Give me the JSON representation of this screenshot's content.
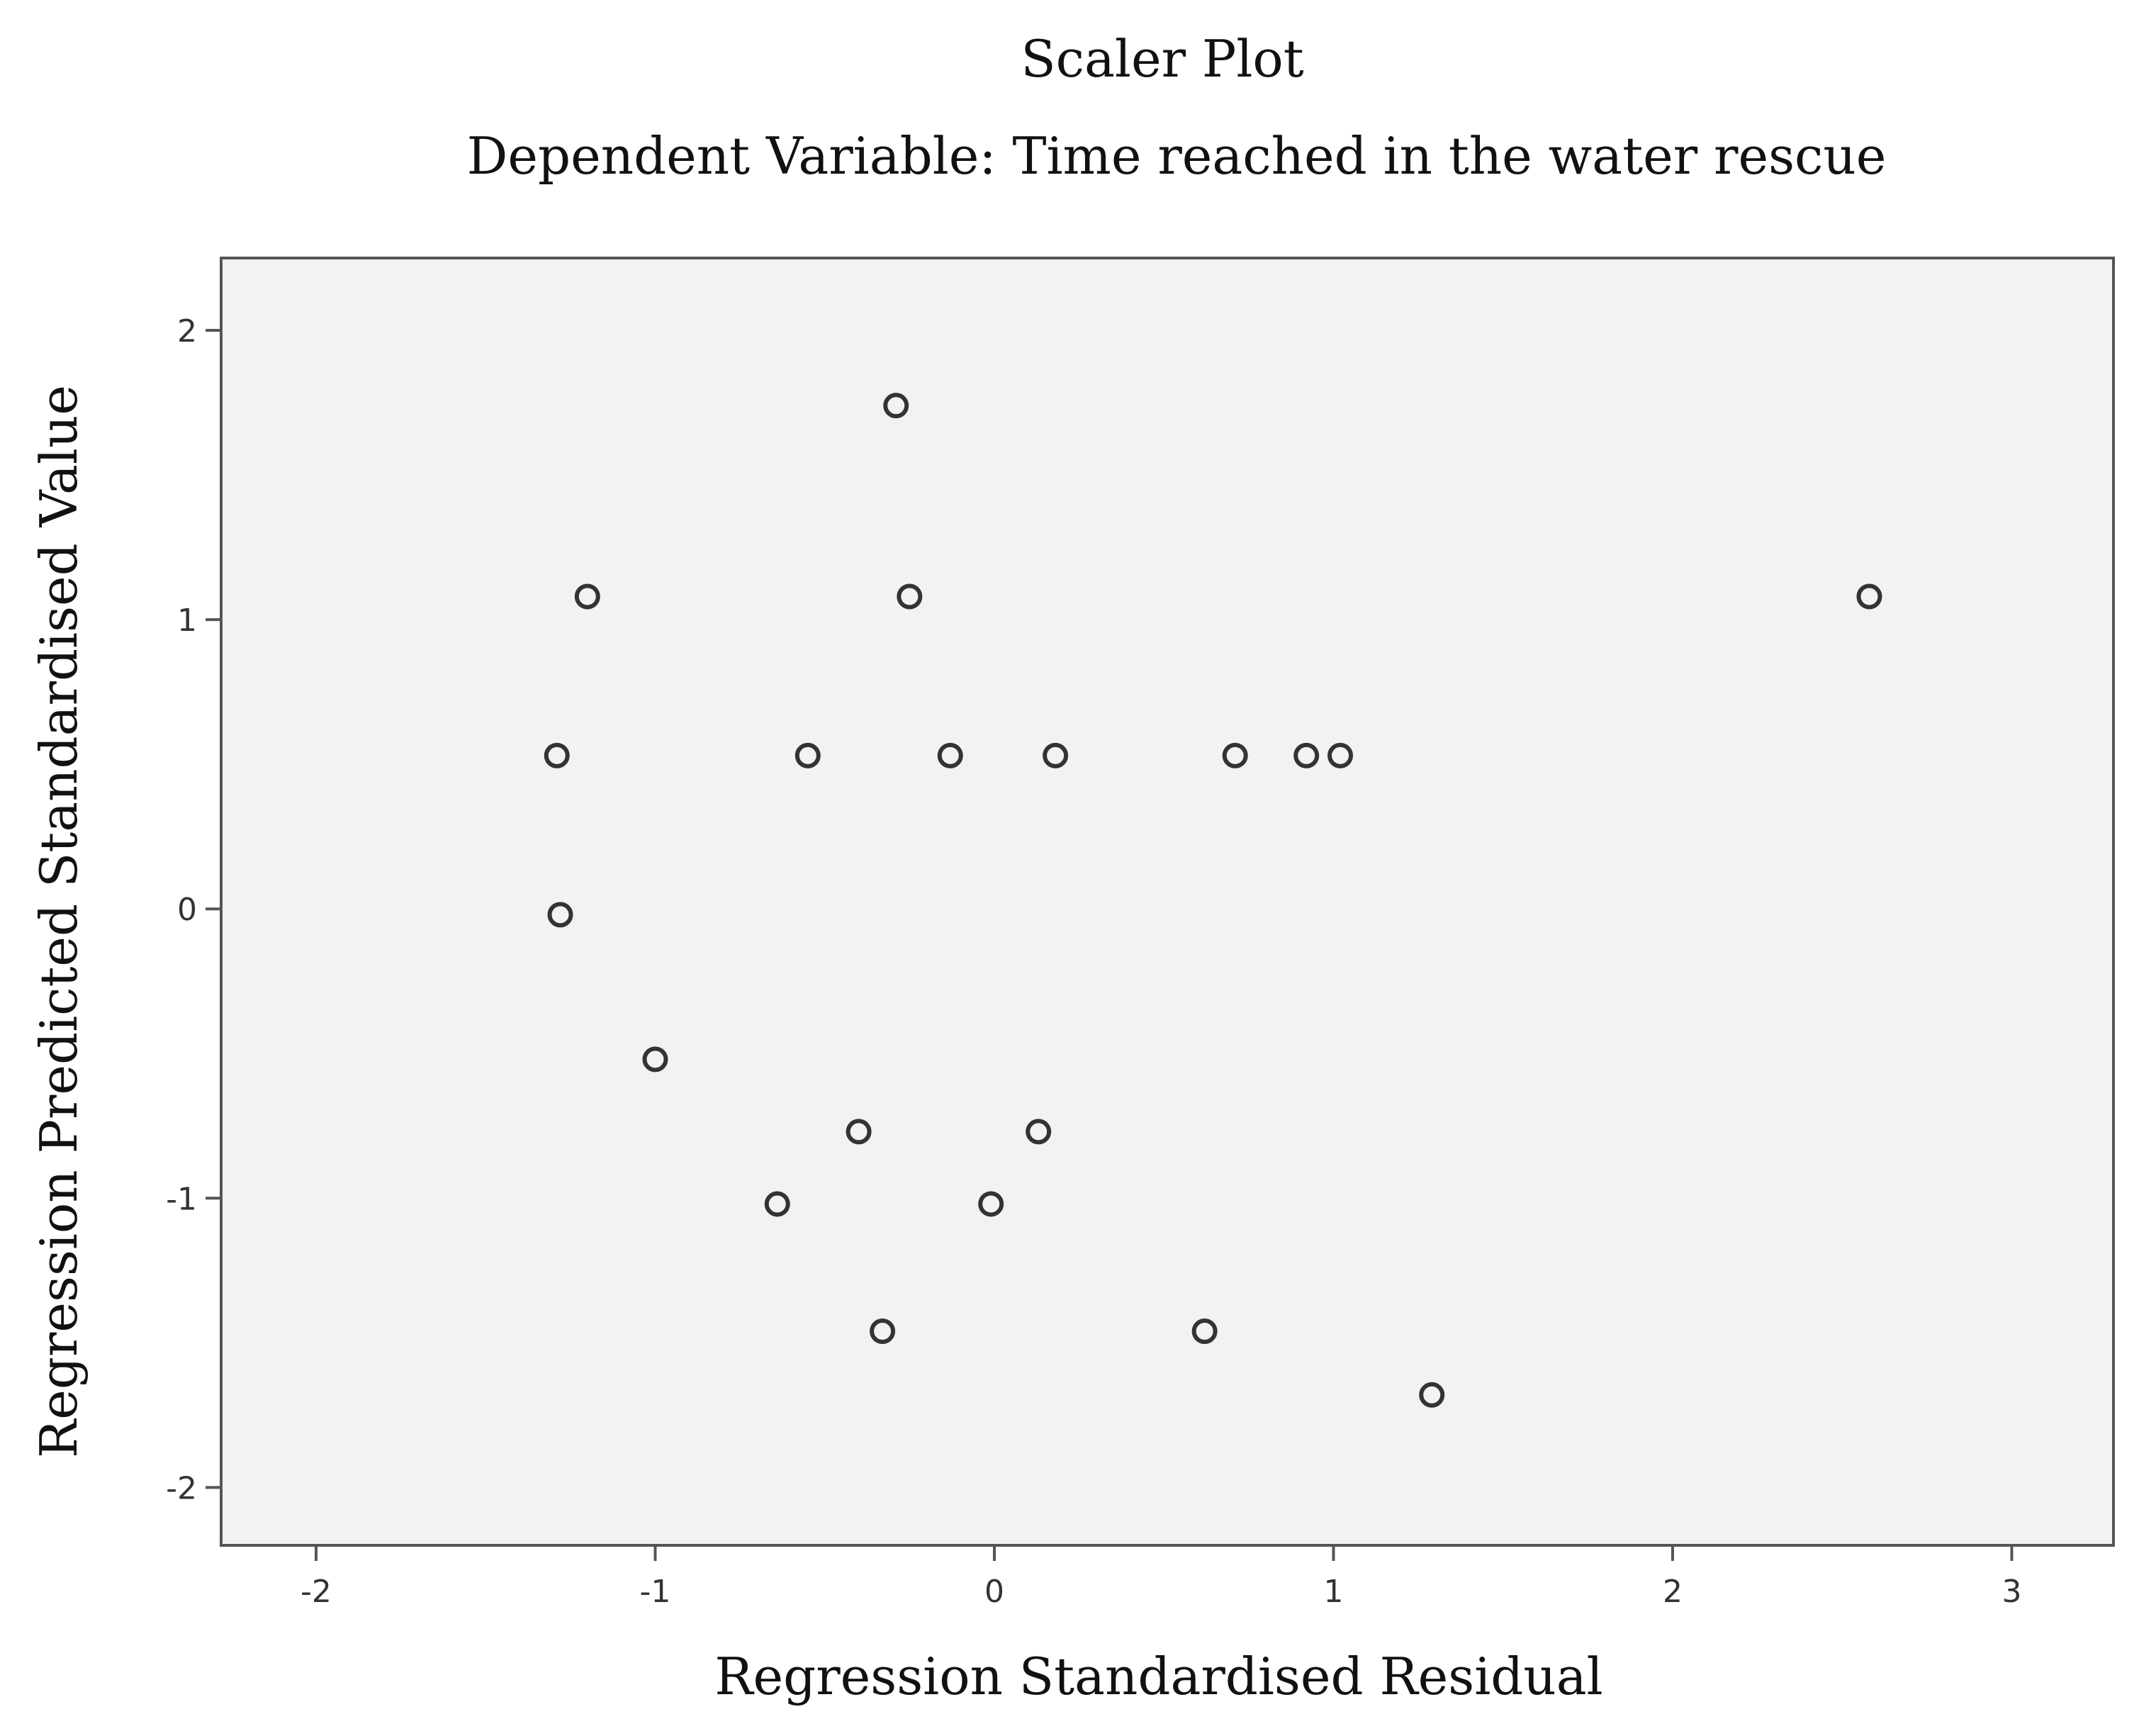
{
  "chart_data": {
    "type": "scatter",
    "title": "Scaler Plot",
    "subtitle": "Dependent Variable: Time reached in the water rescue",
    "xlabel": "Regression Standardised Residual",
    "ylabel": "Regression Predicted Standardised Value",
    "xlim": [
      -2.28,
      3.3
    ],
    "ylim": [
      -2.2,
      2.25
    ],
    "xticks": [
      "-2",
      "-1",
      "0",
      "1",
      "2",
      "3"
    ],
    "yticks": [
      "2",
      "1",
      "0",
      "-1",
      "-2"
    ],
    "grid": false,
    "colors": {
      "plot_background": "#f2f2f2",
      "frame": "#555555",
      "marker_stroke": "#333333"
    },
    "points": [
      {
        "x": -0.29,
        "y": 1.74
      },
      {
        "x": -1.2,
        "y": 1.08
      },
      {
        "x": -0.25,
        "y": 1.08
      },
      {
        "x": 2.58,
        "y": 1.08
      },
      {
        "x": -1.29,
        "y": 0.53
      },
      {
        "x": -0.55,
        "y": 0.53
      },
      {
        "x": -0.13,
        "y": 0.53
      },
      {
        "x": 0.18,
        "y": 0.53
      },
      {
        "x": 0.71,
        "y": 0.53
      },
      {
        "x": 0.92,
        "y": 0.53
      },
      {
        "x": 1.02,
        "y": 0.53
      },
      {
        "x": -1.28,
        "y": -0.02
      },
      {
        "x": -1.0,
        "y": -0.52
      },
      {
        "x": -0.4,
        "y": -0.77
      },
      {
        "x": 0.13,
        "y": -0.77
      },
      {
        "x": -0.64,
        "y": -1.02
      },
      {
        "x": -0.01,
        "y": -1.02
      },
      {
        "x": -0.33,
        "y": -1.46
      },
      {
        "x": 0.62,
        "y": -1.46
      },
      {
        "x": 1.29,
        "y": -1.68
      }
    ]
  }
}
